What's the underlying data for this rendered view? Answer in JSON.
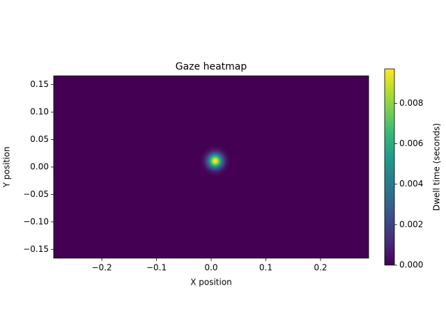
{
  "chart_data": {
    "type": "heatmap",
    "title": "Gaze heatmap",
    "x_label": "X position",
    "y_label": "Y position",
    "colorbar_label": "Dwell time (seconds)",
    "colormap": "viridis",
    "x": [
      0.0075
    ],
    "y": [
      0.011
    ],
    "values": [
      0.0097
    ],
    "xlim": [
      -0.288,
      0.288
    ],
    "ylim": [
      -0.166,
      0.166
    ],
    "xticks": [
      {
        "value": -0.2,
        "label": "−0.2"
      },
      {
        "value": -0.1,
        "label": "−0.1"
      },
      {
        "value": 0,
        "label": "0.0"
      },
      0.1,
      0.2
    ],
    "yticks": [
      {
        "value": -0.15,
        "label": "−0.15"
      },
      {
        "value": -0.1,
        "label": "−0.10"
      },
      {
        "value": -0.05,
        "label": "−0.05"
      },
      {
        "value": 0,
        "label": "0.00"
      },
      {
        "value": 0.05,
        "label": "0.05"
      },
      {
        "value": 0.1,
        "label": "0.10"
      },
      0.15
    ],
    "clim": [
      0,
      0.0097
    ],
    "cticks": [
      {
        "value": 0,
        "label": "0.000"
      },
      {
        "value": 0.002,
        "label": "0.002"
      },
      {
        "value": 0.004,
        "label": "0.004"
      },
      {
        "value": 0.006,
        "label": "0.006"
      },
      {
        "value": 0.008,
        "label": "0.008"
      }
    ]
  }
}
